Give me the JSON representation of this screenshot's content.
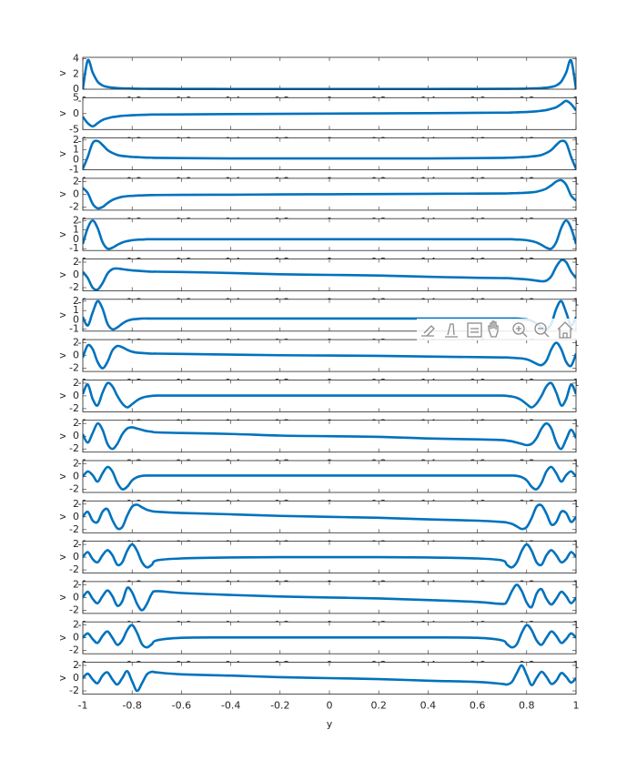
{
  "chart_data": {
    "type": "line",
    "xlabel": "y",
    "color": "#0072bd",
    "xlim": [
      -1,
      1
    ],
    "xticks": [
      -1,
      -0.8,
      -0.6,
      -0.4,
      -0.2,
      0,
      0.2,
      0.4,
      0.6,
      0.8,
      1
    ],
    "x": [
      -1,
      -0.98,
      -0.96,
      -0.94,
      -0.92,
      -0.9,
      -0.88,
      -0.86,
      -0.84,
      -0.82,
      -0.8,
      -0.78,
      -0.76,
      -0.74,
      -0.72,
      -0.7,
      -0.6,
      -0.4,
      -0.2,
      0,
      0.2,
      0.4,
      0.6,
      0.7,
      0.72,
      0.74,
      0.76,
      0.78,
      0.8,
      0.82,
      0.84,
      0.86,
      0.88,
      0.9,
      0.92,
      0.94,
      0.96,
      0.98,
      1
    ],
    "panels": [
      {
        "ylabel": "v",
        "ylim": [
          0,
          4.2
        ],
        "yticks": [
          0,
          2,
          4
        ],
        "values": [
          0,
          3.8,
          2.2,
          1,
          0.5,
          0.3,
          0.2,
          0.15,
          0.12,
          0.1,
          0.08,
          0.07,
          0.06,
          0.06,
          0.05,
          0.05,
          0.04,
          0.03,
          0.03,
          0.03,
          0.03,
          0.03,
          0.04,
          0.05,
          0.05,
          0.06,
          0.06,
          0.07,
          0.08,
          0.1,
          0.12,
          0.15,
          0.2,
          0.3,
          0.5,
          1,
          2.2,
          3.8,
          0
        ]
      },
      {
        "ylabel": "v",
        "ylim": [
          -5,
          5
        ],
        "yticks": [
          -5,
          0,
          5
        ],
        "values": [
          -1,
          -3,
          -4,
          -3,
          -2,
          -1.5,
          -1.1,
          -0.9,
          -0.7,
          -0.6,
          -0.5,
          -0.45,
          -0.4,
          -0.35,
          -0.3,
          -0.3,
          -0.25,
          -0.15,
          -0.08,
          0,
          0.08,
          0.15,
          0.25,
          0.3,
          0.3,
          0.35,
          0.4,
          0.45,
          0.5,
          0.6,
          0.7,
          0.9,
          1.1,
          1.5,
          2,
          3,
          4,
          3,
          1
        ]
      },
      {
        "ylabel": "v",
        "ylim": [
          -1,
          2.2
        ],
        "yticks": [
          -1,
          0,
          1,
          2
        ],
        "values": [
          -0.9,
          0.3,
          1.7,
          1.9,
          1.5,
          1,
          0.7,
          0.5,
          0.4,
          0.35,
          0.3,
          0.28,
          0.25,
          0.23,
          0.22,
          0.2,
          0.18,
          0.15,
          0.15,
          0.15,
          0.15,
          0.15,
          0.18,
          0.2,
          0.22,
          0.23,
          0.25,
          0.28,
          0.3,
          0.35,
          0.4,
          0.5,
          0.7,
          1,
          1.5,
          1.9,
          1.7,
          0.3,
          -0.9
        ]
      },
      {
        "ylabel": "v",
        "ylim": [
          -2.5,
          2.5
        ],
        "yticks": [
          -2,
          0,
          2
        ],
        "values": [
          1,
          0.2,
          -1.5,
          -2.2,
          -2,
          -1.4,
          -0.9,
          -0.6,
          -0.4,
          -0.3,
          -0.25,
          -0.2,
          -0.18,
          -0.15,
          -0.13,
          -0.12,
          -0.1,
          -0.07,
          -0.03,
          0,
          0.03,
          0.07,
          0.1,
          0.12,
          0.13,
          0.15,
          0.18,
          0.2,
          0.25,
          0.3,
          0.4,
          0.6,
          0.9,
          1.4,
          2,
          2.2,
          1.5,
          -0.2,
          -1
        ]
      },
      {
        "ylabel": "v",
        "ylim": [
          -1.2,
          2.2
        ],
        "yticks": [
          -1,
          0,
          1,
          2
        ],
        "values": [
          -0.5,
          1.2,
          2,
          1.2,
          -0.3,
          -1,
          -0.9,
          -0.6,
          -0.35,
          -0.2,
          -0.1,
          -0.05,
          -0.03,
          0,
          0,
          0,
          0,
          0,
          0,
          0,
          0,
          0,
          0,
          0,
          0,
          0,
          -0.03,
          -0.05,
          -0.1,
          -0.2,
          -0.35,
          -0.6,
          -0.9,
          -1,
          -0.3,
          1.2,
          2,
          1.2,
          -0.5
        ]
      },
      {
        "ylabel": "v",
        "ylim": [
          -2.5,
          2.5
        ],
        "yticks": [
          -2,
          0,
          2
        ],
        "values": [
          0.5,
          -0.5,
          -2,
          -2.3,
          -1.3,
          0.2,
          0.9,
          1,
          0.9,
          0.8,
          0.7,
          0.65,
          0.6,
          0.55,
          0.5,
          0.5,
          0.45,
          0.3,
          0.1,
          0,
          -0.1,
          -0.3,
          -0.45,
          -0.5,
          -0.5,
          -0.55,
          -0.6,
          -0.65,
          -0.7,
          -0.8,
          -0.9,
          -1,
          -0.9,
          -0.2,
          1.3,
          2.3,
          2,
          0.5,
          -0.5
        ]
      },
      {
        "ylabel": "v",
        "ylim": [
          -1.2,
          2.2
        ],
        "yticks": [
          -1,
          0,
          1,
          2
        ],
        "values": [
          0.3,
          -0.6,
          0.8,
          2,
          1.2,
          -0.4,
          -1,
          -0.8,
          -0.4,
          -0.1,
          0.05,
          0.1,
          0.15,
          0.15,
          0.15,
          0.15,
          0.15,
          0.15,
          0.15,
          0.15,
          0.15,
          0.15,
          0.15,
          0.15,
          0.15,
          0.15,
          0.15,
          0.1,
          0.05,
          -0.1,
          -0.4,
          -0.8,
          -1,
          -0.4,
          1.2,
          2,
          0.8,
          -0.6,
          0.3
        ]
      },
      {
        "ylabel": "v",
        "ylim": [
          -2.5,
          2.5
        ],
        "yticks": [
          -2,
          0,
          2
        ],
        "values": [
          -0.3,
          1.6,
          1,
          -1,
          -2,
          -1,
          0.8,
          1.5,
          1.3,
          0.9,
          0.6,
          0.45,
          0.4,
          0.35,
          0.3,
          0.3,
          0.25,
          0.15,
          0.05,
          0,
          -0.05,
          -0.15,
          -0.25,
          -0.3,
          -0.3,
          -0.35,
          -0.4,
          -0.45,
          -0.6,
          -0.9,
          -1.3,
          -1.5,
          -0.8,
          1,
          2,
          1,
          -1,
          -1.6,
          0.3
        ]
      },
      {
        "ylabel": "v",
        "ylim": [
          -2.5,
          2.5
        ],
        "yticks": [
          -2,
          0,
          2
        ],
        "values": [
          0.3,
          1.8,
          -0.5,
          -1.5,
          0.5,
          2,
          1.5,
          0,
          -1.2,
          -1.8,
          -1.3,
          -0.7,
          -0.3,
          -0.1,
          0,
          0.05,
          0.05,
          0.05,
          0.05,
          0.05,
          0.05,
          0.05,
          0.05,
          0.05,
          0,
          -0.1,
          -0.3,
          -0.7,
          -1.3,
          -1.8,
          -1.2,
          0,
          1.5,
          2,
          0.5,
          -1.5,
          -0.5,
          1.8,
          0.3
        ]
      },
      {
        "ylabel": "v",
        "ylim": [
          -2.5,
          2.5
        ],
        "yticks": [
          -2,
          0,
          2
        ],
        "values": [
          0.3,
          -1,
          0.5,
          2,
          1,
          -1.2,
          -2,
          -1.2,
          0.3,
          1.2,
          1.4,
          1.2,
          1,
          0.8,
          0.7,
          0.6,
          0.5,
          0.35,
          0.1,
          0,
          -0.1,
          -0.35,
          -0.5,
          -0.6,
          -0.7,
          -0.8,
          -1,
          -1.2,
          -1.4,
          -1.2,
          -0.3,
          1.2,
          2,
          1.2,
          -1,
          -2,
          -0.5,
          1,
          -0.3
        ]
      },
      {
        "ylabel": "v",
        "ylim": [
          -2.5,
          2.5
        ],
        "yticks": [
          -2,
          0,
          2
        ],
        "values": [
          0,
          0.8,
          0.2,
          -0.8,
          0.5,
          1.5,
          0.8,
          -1,
          -2,
          -1.6,
          -0.6,
          -0.1,
          0.1,
          0.15,
          0.15,
          0.15,
          0.15,
          0.15,
          0.15,
          0.15,
          0.15,
          0.15,
          0.15,
          0.15,
          0.15,
          0.15,
          0.1,
          -0.1,
          -0.6,
          -1.6,
          -2,
          -1,
          0.8,
          1.5,
          0.5,
          -0.8,
          0.2,
          0.8,
          0
        ]
      },
      {
        "ylabel": "v",
        "ylim": [
          -2.5,
          2.5
        ],
        "yticks": [
          -2,
          0,
          2
        ],
        "values": [
          0,
          0.8,
          -0.6,
          -0.8,
          0.8,
          1.2,
          -0.5,
          -1.8,
          -1.6,
          0.2,
          1.6,
          1.9,
          1.5,
          1.1,
          0.9,
          0.8,
          0.6,
          0.4,
          0.15,
          0,
          -0.15,
          -0.4,
          -0.6,
          -0.8,
          -0.9,
          -1.1,
          -1.5,
          -1.9,
          -1.6,
          -0.2,
          1.6,
          1.8,
          0.5,
          -1.2,
          -0.8,
          0.8,
          0.6,
          -0.8,
          0
        ]
      },
      {
        "ylabel": "v",
        "ylim": [
          -2.5,
          2.5
        ],
        "yticks": [
          -2,
          0,
          2
        ],
        "values": [
          0,
          0.8,
          -0.3,
          -0.8,
          0.3,
          1.1,
          0.3,
          -1.2,
          -0.8,
          1,
          2,
          1,
          -0.8,
          -1.6,
          -1.2,
          -0.5,
          -0.2,
          -0.05,
          0,
          0,
          0,
          -0.05,
          -0.2,
          -0.5,
          -1.2,
          -1.6,
          -0.8,
          1,
          2,
          1,
          -0.8,
          -1.2,
          0.3,
          1.1,
          0.3,
          -0.8,
          -0.3,
          0.8,
          0
        ]
      },
      {
        "ylabel": "v",
        "ylim": [
          -2.5,
          2.5
        ],
        "yticks": [
          -2,
          0,
          2
        ],
        "values": [
          0,
          0.9,
          -0.2,
          -0.9,
          0.2,
          1.1,
          0.2,
          -1.3,
          -0.6,
          1.5,
          0.8,
          -1,
          -2,
          -1,
          0.6,
          1,
          0.7,
          0.4,
          0.15,
          0,
          -0.15,
          -0.4,
          -0.7,
          -1,
          -0.6,
          1,
          2,
          1,
          -0.8,
          -1.5,
          0.6,
          1.3,
          -0.2,
          -1.1,
          -0.2,
          0.9,
          0.2,
          -0.9,
          0
        ]
      },
      {
        "ylabel": "v",
        "ylim": [
          -2.5,
          2.5
        ],
        "yticks": [
          -2,
          0,
          2
        ],
        "values": [
          0,
          0.7,
          -0.2,
          -0.8,
          0.3,
          1,
          0,
          -1.1,
          -0.4,
          1.2,
          2,
          0.8,
          -1,
          -1.5,
          -1,
          -0.4,
          0,
          0.05,
          0.05,
          0.05,
          0.05,
          0.05,
          0,
          -0.4,
          -1,
          -1.5,
          -1,
          0.8,
          2,
          1.2,
          -0.4,
          -1.1,
          0,
          1,
          0.3,
          -0.8,
          -0.2,
          0.7,
          0
        ]
      },
      {
        "ylabel": "v",
        "ylim": [
          -2.5,
          2.5
        ],
        "yticks": [
          -2,
          0,
          2
        ],
        "values": [
          0,
          0.7,
          -0.2,
          -0.8,
          0.4,
          0.9,
          -0.2,
          -1,
          0,
          1.1,
          -0.5,
          -2,
          -0.8,
          0.6,
          1,
          0.9,
          0.6,
          0.4,
          0.15,
          0,
          -0.15,
          -0.4,
          -0.6,
          -0.9,
          -1,
          -0.6,
          0.8,
          2,
          0.5,
          -1.1,
          0,
          1,
          0.2,
          -0.9,
          -0.4,
          0.8,
          0.2,
          -0.7,
          0
        ]
      }
    ]
  }
}
